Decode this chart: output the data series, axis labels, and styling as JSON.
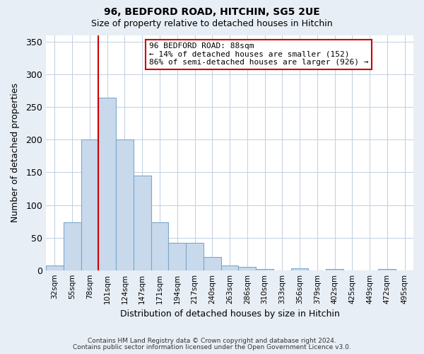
{
  "title": "96, BEDFORD ROAD, HITCHIN, SG5 2UE",
  "subtitle": "Size of property relative to detached houses in Hitchin",
  "xlabel": "Distribution of detached houses by size in Hitchin",
  "ylabel": "Number of detached properties",
  "bar_labels": [
    "32sqm",
    "55sqm",
    "78sqm",
    "101sqm",
    "124sqm",
    "147sqm",
    "171sqm",
    "194sqm",
    "217sqm",
    "240sqm",
    "263sqm",
    "286sqm",
    "310sqm",
    "333sqm",
    "356sqm",
    "379sqm",
    "402sqm",
    "425sqm",
    "449sqm",
    "472sqm",
    "495sqm"
  ],
  "bar_heights": [
    7,
    74,
    200,
    265,
    200,
    145,
    74,
    42,
    42,
    20,
    7,
    5,
    2,
    0,
    3,
    0,
    2,
    0,
    0,
    2,
    0
  ],
  "bar_color": "#c9d9ec",
  "bar_edge_color": "#7aa8cc",
  "ylim": [
    0,
    360
  ],
  "yticks": [
    0,
    50,
    100,
    150,
    200,
    250,
    300,
    350
  ],
  "vline_color": "#cc0000",
  "annotation_title": "96 BEDFORD ROAD: 88sqm",
  "annotation_line1": "← 14% of detached houses are smaller (152)",
  "annotation_line2": "86% of semi-detached houses are larger (926) →",
  "annotation_box_color": "#cc0000",
  "footnote1": "Contains HM Land Registry data © Crown copyright and database right 2024.",
  "footnote2": "Contains public sector information licensed under the Open Government Licence v3.0.",
  "bg_color": "#e8eef5",
  "plot_bg_color": "#ffffff",
  "grid_color": "#c0cfe0"
}
